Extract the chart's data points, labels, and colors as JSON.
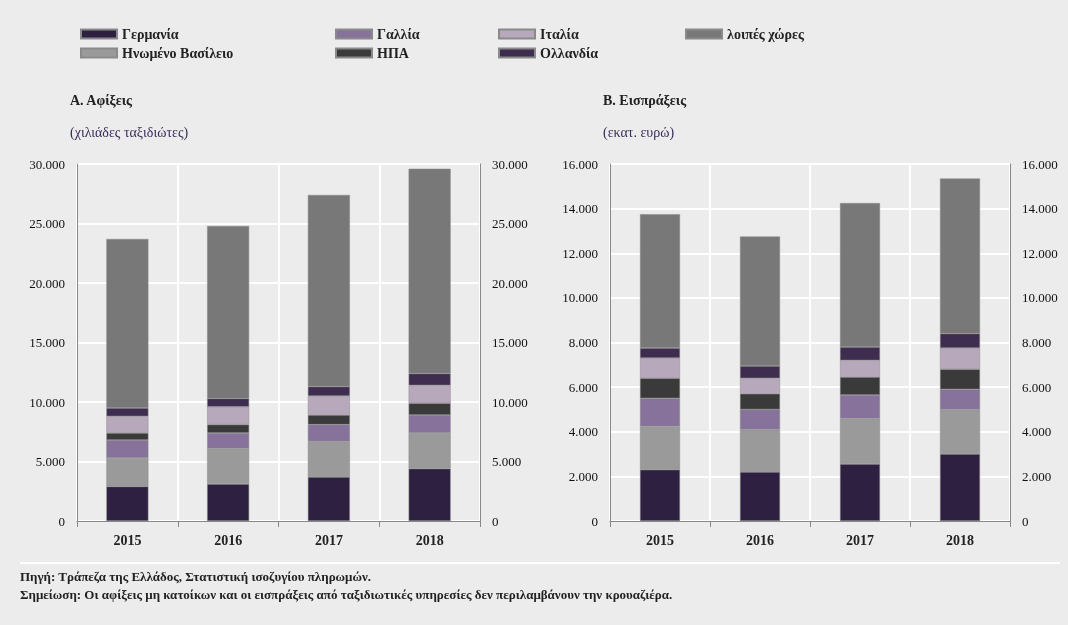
{
  "chart_data": [
    {
      "type": "bar",
      "title": "Α. Αφίξεις",
      "subtitle": "(χιλιάδες ταξιδιώτες)",
      "stacked": true,
      "categories": [
        "2015",
        "2016",
        "2017",
        "2018"
      ],
      "series": [
        {
          "name": "Γερμανία",
          "color": "#2e2040",
          "values": [
            2900,
            3100,
            3700,
            4400
          ]
        },
        {
          "name": "Ηνωμένο Βασίλειο",
          "color": "#9a9a9a",
          "values": [
            2400,
            3000,
            3000,
            3000
          ]
        },
        {
          "name": "Γαλλία",
          "color": "#86729a",
          "values": [
            1500,
            1300,
            1400,
            1500
          ]
        },
        {
          "name": "ΗΠΑ",
          "color": "#3a3a3a",
          "values": [
            600,
            700,
            800,
            1000
          ]
        },
        {
          "name": "Ιταλία",
          "color": "#b8a8bc",
          "values": [
            1400,
            1500,
            1600,
            1500
          ]
        },
        {
          "name": "Ολλανδία",
          "color": "#3f2d50",
          "values": [
            700,
            700,
            800,
            1000
          ]
        },
        {
          "name": "λοιπές χώρες",
          "color": "#787878",
          "values": [
            14200,
            14500,
            16100,
            17200
          ]
        }
      ],
      "ylim": [
        0,
        30000
      ],
      "yticks": [
        0,
        {
          "value": 5000,
          "label": "5.000"
        },
        {
          "value": 10000,
          "label": "10.000"
        },
        {
          "value": 15000,
          "label": "15.000"
        },
        {
          "value": 20000,
          "label": "20.000"
        },
        {
          "value": 25000,
          "label": "25.000"
        },
        {
          "value": 30000,
          "label": "30.000"
        }
      ],
      "y2lim": [
        0,
        30000
      ],
      "y2ticks": [
        0,
        {
          "value": 5000,
          "label": "5.000"
        },
        {
          "value": 10000,
          "label": "10.000"
        },
        {
          "value": 15000,
          "label": "15.000"
        },
        {
          "value": 20000,
          "label": "20.000"
        },
        {
          "value": 25000,
          "label": "25.000"
        },
        {
          "value": 30000,
          "label": "30.000"
        }
      ],
      "grid": true,
      "legend": "top",
      "annotations": [
        "Πηγή: Τράπεζα της Ελλάδος, Στατιστική ισοζυγίου πληρωμών.",
        "Σημείωση: Οι αφίξεις μη κατοίκων και οι εισπράξεις από ταξιδιωτικές υπηρεσίες δεν περιλαμβάνουν την κρουαζιέρα."
      ]
    },
    {
      "type": "bar",
      "title": "Β. Εισπράξεις",
      "subtitle": "(εκατ. ευρώ)",
      "stacked": true,
      "categories": [
        "2015",
        "2016",
        "2017",
        "2018"
      ],
      "series": [
        {
          "color": "#2e2040",
          "values": [
            2300,
            2200,
            2550,
            3000
          ]
        },
        {
          "color": "#9a9a9a",
          "values": [
            1950,
            1900,
            2050,
            2000
          ]
        },
        {
          "color": "#86729a",
          "values": [
            1250,
            900,
            1050,
            900
          ]
        },
        {
          "color": "#3a3a3a",
          "values": [
            900,
            700,
            800,
            900
          ]
        },
        {
          "color": "#b8a8bc",
          "values": [
            900,
            700,
            750,
            950
          ]
        },
        {
          "color": "#3f2d50",
          "values": [
            450,
            550,
            600,
            650
          ]
        },
        {
          "color": "#787878",
          "values": [
            6000,
            5800,
            6450,
            6950
          ]
        }
      ],
      "ylim": [
        0,
        16000
      ],
      "yticks": [
        0,
        {
          "value": 2000,
          "label": "2.000"
        },
        {
          "value": 4000,
          "label": "4.000"
        },
        {
          "value": 6000,
          "label": "6.000"
        },
        {
          "value": 8000,
          "label": "8.000"
        },
        {
          "value": 10000,
          "label": "10.000"
        },
        {
          "value": 12000,
          "label": "12.000"
        },
        {
          "value": 14000,
          "label": "14.000"
        },
        {
          "value": 16000,
          "label": "16.000"
        }
      ],
      "y2lim": [
        0,
        16000
      ],
      "y2ticks": [
        0,
        {
          "value": 2000,
          "label": "2.000"
        },
        {
          "value": 4000,
          "label": "4.000"
        },
        {
          "value": 6000,
          "label": "6.000"
        },
        {
          "value": 8000,
          "label": "8.000"
        },
        {
          "value": 10000,
          "label": "10.000"
        },
        {
          "value": 12000,
          "label": "12.000"
        },
        {
          "value": 14000,
          "label": "14.000"
        },
        {
          "value": 16000,
          "label": "16.000"
        }
      ],
      "grid": true
    }
  ]
}
